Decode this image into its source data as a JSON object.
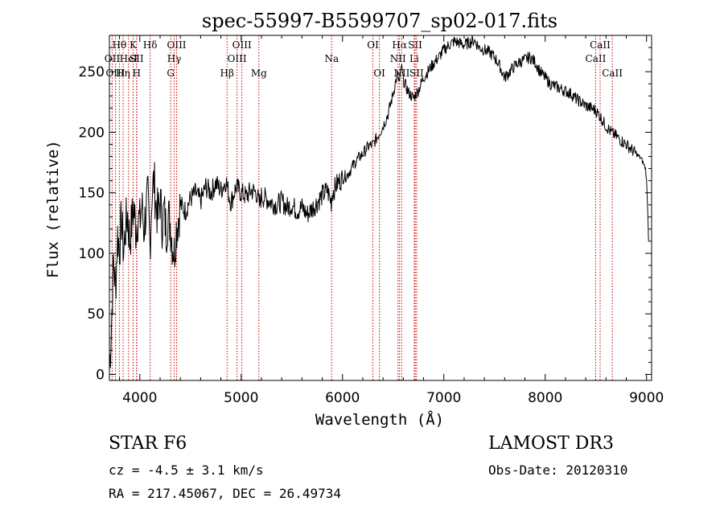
{
  "chart_data": {
    "type": "line",
    "title": "spec-55997-B5599707_sp02-017.fits",
    "xlabel": "Wavelength (Å)",
    "ylabel": "Flux (relative)",
    "xlim": [
      3700,
      9050
    ],
    "ylim": [
      -5,
      280
    ],
    "xticks": [
      4000,
      5000,
      6000,
      7000,
      8000,
      9000
    ],
    "yticks": [
      0,
      50,
      100,
      150,
      200,
      250
    ],
    "grid": false,
    "line_color": "#000000",
    "marker_color": "#cc0000",
    "series": [
      {
        "name": "flux",
        "points": [
          [
            3700,
            5
          ],
          [
            3720,
            40
          ],
          [
            3740,
            95
          ],
          [
            3760,
            70
          ],
          [
            3780,
            115
          ],
          [
            3800,
            105
          ],
          [
            3820,
            128
          ],
          [
            3840,
            100
          ],
          [
            3860,
            122
          ],
          [
            3880,
            132
          ],
          [
            3900,
            110
          ],
          [
            3920,
            125
          ],
          [
            3940,
            138
          ],
          [
            3960,
            120
          ],
          [
            3980,
            130
          ],
          [
            4000,
            125
          ],
          [
            4020,
            140
          ],
          [
            4040,
            120
          ],
          [
            4060,
            135
          ],
          [
            4080,
            145
          ],
          [
            4100,
            105
          ],
          [
            4120,
            150
          ],
          [
            4140,
            160
          ],
          [
            4160,
            140
          ],
          [
            4180,
            130
          ],
          [
            4200,
            145
          ],
          [
            4220,
            125
          ],
          [
            4240,
            135
          ],
          [
            4260,
            118
          ],
          [
            4280,
            130
          ],
          [
            4300,
            125
          ],
          [
            4320,
            110
          ],
          [
            4340,
            100
          ],
          [
            4360,
            120
          ],
          [
            4380,
            130
          ],
          [
            4400,
            140
          ],
          [
            4450,
            135
          ],
          [
            4500,
            145
          ],
          [
            4550,
            150
          ],
          [
            4600,
            143
          ],
          [
            4650,
            155
          ],
          [
            4700,
            150
          ],
          [
            4750,
            158
          ],
          [
            4800,
            152
          ],
          [
            4850,
            160
          ],
          [
            4880,
            148
          ],
          [
            4900,
            142
          ],
          [
            4950,
            155
          ],
          [
            5000,
            150
          ],
          [
            5050,
            147
          ],
          [
            5100,
            152
          ],
          [
            5150,
            150
          ],
          [
            5180,
            140
          ],
          [
            5200,
            147
          ],
          [
            5250,
            145
          ],
          [
            5300,
            142
          ],
          [
            5350,
            140
          ],
          [
            5400,
            143
          ],
          [
            5450,
            138
          ],
          [
            5500,
            140
          ],
          [
            5550,
            135
          ],
          [
            5600,
            138
          ],
          [
            5650,
            132
          ],
          [
            5700,
            137
          ],
          [
            5750,
            142
          ],
          [
            5800,
            148
          ],
          [
            5850,
            152
          ],
          [
            5890,
            142
          ],
          [
            5900,
            150
          ],
          [
            5950,
            158
          ],
          [
            6000,
            162
          ],
          [
            6050,
            165
          ],
          [
            6100,
            172
          ],
          [
            6150,
            178
          ],
          [
            6200,
            182
          ],
          [
            6250,
            188
          ],
          [
            6300,
            190
          ],
          [
            6350,
            197
          ],
          [
            6400,
            205
          ],
          [
            6450,
            215
          ],
          [
            6500,
            232
          ],
          [
            6540,
            248
          ],
          [
            6563,
            240
          ],
          [
            6580,
            255
          ],
          [
            6600,
            243
          ],
          [
            6650,
            233
          ],
          [
            6700,
            228
          ],
          [
            6750,
            235
          ],
          [
            6800,
            245
          ],
          [
            6850,
            251
          ],
          [
            6900,
            257
          ],
          [
            6950,
            262
          ],
          [
            7000,
            268
          ],
          [
            7050,
            272
          ],
          [
            7100,
            275
          ],
          [
            7150,
            274
          ],
          [
            7200,
            272
          ],
          [
            7250,
            274
          ],
          [
            7300,
            276
          ],
          [
            7350,
            270
          ],
          [
            7400,
            268
          ],
          [
            7450,
            266
          ],
          [
            7500,
            262
          ],
          [
            7550,
            255
          ],
          [
            7600,
            245
          ],
          [
            7650,
            250
          ],
          [
            7700,
            255
          ],
          [
            7750,
            258
          ],
          [
            7800,
            260
          ],
          [
            7850,
            262
          ],
          [
            7900,
            258
          ],
          [
            7950,
            250
          ],
          [
            8000,
            245
          ],
          [
            8050,
            240
          ],
          [
            8100,
            238
          ],
          [
            8150,
            236
          ],
          [
            8200,
            234
          ],
          [
            8250,
            232
          ],
          [
            8300,
            228
          ],
          [
            8350,
            225
          ],
          [
            8400,
            222
          ],
          [
            8450,
            220
          ],
          [
            8500,
            218
          ],
          [
            8550,
            212
          ],
          [
            8600,
            205
          ],
          [
            8650,
            200
          ],
          [
            8700,
            197
          ],
          [
            8750,
            193
          ],
          [
            8800,
            190
          ],
          [
            8850,
            186
          ],
          [
            8900,
            182
          ],
          [
            8950,
            178
          ],
          [
            8990,
            170
          ],
          [
            9000,
            160
          ],
          [
            9010,
            140
          ],
          [
            9020,
            110
          ]
        ]
      }
    ],
    "line_markers": [
      {
        "label": "Hθ",
        "x": 3798,
        "row": 0
      },
      {
        "label": "OII",
        "x": 3727,
        "row": 1
      },
      {
        "label": "OIII",
        "x": 3760,
        "row": 2
      },
      {
        "label": "Hη",
        "x": 3835,
        "row": 2
      },
      {
        "label": "HeI",
        "x": 3889,
        "row": 1
      },
      {
        "label": "K",
        "x": 3934,
        "row": 0
      },
      {
        "label": "SII",
        "x": 3968,
        "row": 1
      },
      {
        "label": "H",
        "x": 3969,
        "row": 2
      },
      {
        "label": "Hδ",
        "x": 4102,
        "row": 0
      },
      {
        "label": "OIII",
        "x": 4363,
        "row": 0
      },
      {
        "label": "Hγ",
        "x": 4340,
        "row": 1
      },
      {
        "label": "G",
        "x": 4305,
        "row": 2
      },
      {
        "label": "Hβ",
        "x": 4861,
        "row": 2
      },
      {
        "label": "OIII",
        "x": 5007,
        "row": 0
      },
      {
        "label": "OIII",
        "x": 4959,
        "row": 1
      },
      {
        "label": "Mg",
        "x": 5175,
        "row": 2
      },
      {
        "label": "Na",
        "x": 5893,
        "row": 1
      },
      {
        "label": "OI",
        "x": 6300,
        "row": 0
      },
      {
        "label": "OI",
        "x": 6364,
        "row": 2
      },
      {
        "label": "Hα",
        "x": 6563,
        "row": 0
      },
      {
        "label": "NII",
        "x": 6548,
        "row": 1
      },
      {
        "label": "NII",
        "x": 6584,
        "row": 2
      },
      {
        "label": "SII",
        "x": 6717,
        "row": 0
      },
      {
        "label": "Li",
        "x": 6708,
        "row": 1
      },
      {
        "label": "SII",
        "x": 6731,
        "row": 2
      },
      {
        "label": "CaII",
        "x": 8542,
        "row": 0
      },
      {
        "label": "CaII",
        "x": 8498,
        "row": 1
      },
      {
        "label": "CaII",
        "x": 8662,
        "row": 2
      }
    ]
  },
  "info": {
    "class_label": "STAR    F6",
    "velocity": "cz = -4.5 ± 3.1 km/s",
    "coordinates": "RA = 217.45067, DEC =  26.49734",
    "survey": "LAMOST DR3",
    "obs_date": "Obs-Date: 20120310"
  }
}
